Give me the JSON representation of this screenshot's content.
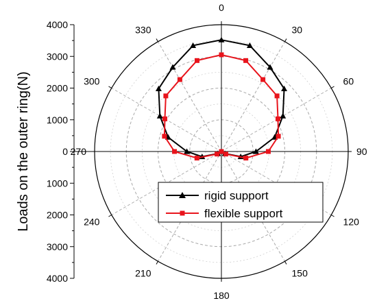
{
  "chart_data": {
    "type": "polar-line",
    "ylabel": "Loads on the outer ring(N)",
    "radial_range": [
      0,
      4000
    ],
    "radial_ticks": [
      0,
      1000,
      2000,
      3000,
      4000
    ],
    "radial_tick_labels_upper": [
      "0",
      "1000",
      "2000",
      "3000",
      "4000"
    ],
    "radial_tick_labels_lower": [
      "1000",
      "2000",
      "3000",
      "4000"
    ],
    "angle_ticks": [
      0,
      30,
      60,
      90,
      120,
      150,
      180,
      210,
      240,
      270,
      300,
      330
    ],
    "angle_tick_labels": [
      "0",
      "30",
      "60",
      "90",
      "120",
      "150",
      "180",
      "210",
      "240",
      "270",
      "300",
      "330"
    ],
    "angle_direction": "clockwise",
    "zero_angle": "top",
    "grid": true,
    "legend_position": "bottom-center",
    "series": [
      {
        "name": "rigid support",
        "color": "#000000",
        "marker": "triangle",
        "points": [
          {
            "angle": 0,
            "r": 3520
          },
          {
            "angle": 15,
            "r": 3460
          },
          {
            "angle": 30,
            "r": 3070
          },
          {
            "angle": 45,
            "r": 2800
          },
          {
            "angle": 60,
            "r": 2240
          },
          {
            "angle": 75,
            "r": 1740
          },
          {
            "angle": 90,
            "r": 1090
          },
          {
            "angle": 105,
            "r": 630
          },
          {
            "angle": 120,
            "r": 130
          },
          {
            "angle": 135,
            "r": 0
          },
          {
            "angle": 225,
            "r": 0
          },
          {
            "angle": 240,
            "r": 130
          },
          {
            "angle": 255,
            "r": 630
          },
          {
            "angle": 270,
            "r": 1090
          },
          {
            "angle": 285,
            "r": 1740
          },
          {
            "angle": 300,
            "r": 2240
          },
          {
            "angle": 315,
            "r": 2800
          },
          {
            "angle": 330,
            "r": 3070
          },
          {
            "angle": 345,
            "r": 3460
          }
        ]
      },
      {
        "name": "flexible support",
        "color": "#e8141c",
        "marker": "square",
        "points": [
          {
            "angle": 0,
            "r": 3050
          },
          {
            "angle": 15,
            "r": 2970
          },
          {
            "angle": 30,
            "r": 2620
          },
          {
            "angle": 45,
            "r": 2480
          },
          {
            "angle": 60,
            "r": 2060
          },
          {
            "angle": 75,
            "r": 1860
          },
          {
            "angle": 90,
            "r": 1480
          },
          {
            "angle": 105,
            "r": 800
          },
          {
            "angle": 120,
            "r": 160
          },
          {
            "angle": 135,
            "r": 0
          },
          {
            "angle": 225,
            "r": 0
          },
          {
            "angle": 240,
            "r": 160
          },
          {
            "angle": 255,
            "r": 800
          },
          {
            "angle": 270,
            "r": 1480
          },
          {
            "angle": 285,
            "r": 1860
          },
          {
            "angle": 300,
            "r": 2060
          },
          {
            "angle": 315,
            "r": 2480
          },
          {
            "angle": 330,
            "r": 2620
          },
          {
            "angle": 345,
            "r": 2970
          }
        ]
      }
    ]
  }
}
